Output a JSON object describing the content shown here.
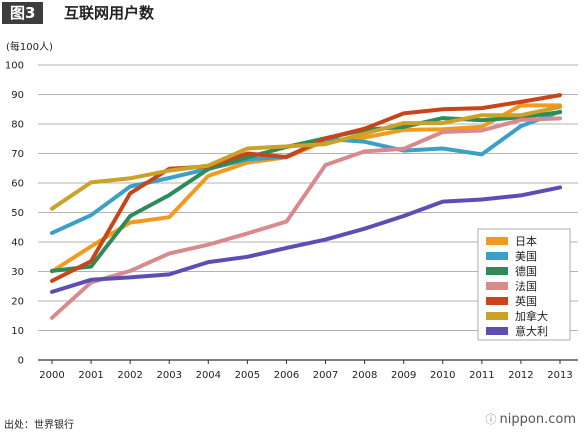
{
  "header": {
    "figure_label": "图3",
    "title": "互联网用户数"
  },
  "footer": {
    "source": "出处：世界银行",
    "brand": "nippon.com",
    "brand_icon": "info-circle-icon"
  },
  "chart_data": {
    "type": "line",
    "title": "互联网用户数",
    "ylabel": "(每100人)",
    "xlabel": "",
    "ylim": [
      0,
      100
    ],
    "yticks": [
      0,
      10,
      20,
      30,
      40,
      50,
      60,
      70,
      80,
      90,
      100
    ],
    "grid": true,
    "legend_position": "lower-right",
    "categories": [
      "2000",
      "2001",
      "2002",
      "2003",
      "2004",
      "2005",
      "2006",
      "2007",
      "2008",
      "2009",
      "2010",
      "2011",
      "2012",
      "2013"
    ],
    "series": [
      {
        "name": "日本",
        "color": "#f39a1e",
        "values": [
          30,
          38.5,
          46.6,
          48.4,
          62.4,
          66.9,
          68.7,
          74.3,
          75.4,
          78,
          78.2,
          79.1,
          86.3,
          86.3
        ]
      },
      {
        "name": "美国",
        "color": "#3aa0c8",
        "values": [
          43.1,
          49.1,
          58.8,
          61.7,
          64.8,
          68,
          68.9,
          75,
          74,
          71,
          71.7,
          69.7,
          79.3,
          84.2
        ]
      },
      {
        "name": "德国",
        "color": "#2e8b57",
        "values": [
          30.2,
          31.7,
          48.8,
          55.9,
          64.7,
          68.7,
          72.2,
          75.2,
          78,
          79,
          82,
          81.3,
          82.3,
          84
        ]
      },
      {
        "name": "法国",
        "color": "#d98a8e",
        "values": [
          14.3,
          26.3,
          30.2,
          36.1,
          39.1,
          42.9,
          46.9,
          66.1,
          70.7,
          71.6,
          77.3,
          77.8,
          81.4,
          81.9
        ]
      },
      {
        "name": "英国",
        "color": "#c8451c",
        "values": [
          26.8,
          33.5,
          56.5,
          64.8,
          65.6,
          70,
          68.8,
          75.1,
          78.4,
          83.6,
          85,
          85.4,
          87.5,
          89.8
        ]
      },
      {
        "name": "加拿大",
        "color": "#c9a227",
        "values": [
          51.3,
          60.2,
          61.6,
          64.2,
          65.9,
          71.7,
          72.4,
          73.2,
          76.7,
          80.3,
          80.3,
          83,
          83,
          85.8
        ]
      },
      {
        "name": "意大利",
        "color": "#5b4fb5",
        "values": [
          23.1,
          27.2,
          28,
          29,
          33.2,
          35,
          38,
          40.8,
          44.5,
          48.8,
          53.7,
          54.4,
          55.8,
          58.5
        ]
      }
    ]
  }
}
